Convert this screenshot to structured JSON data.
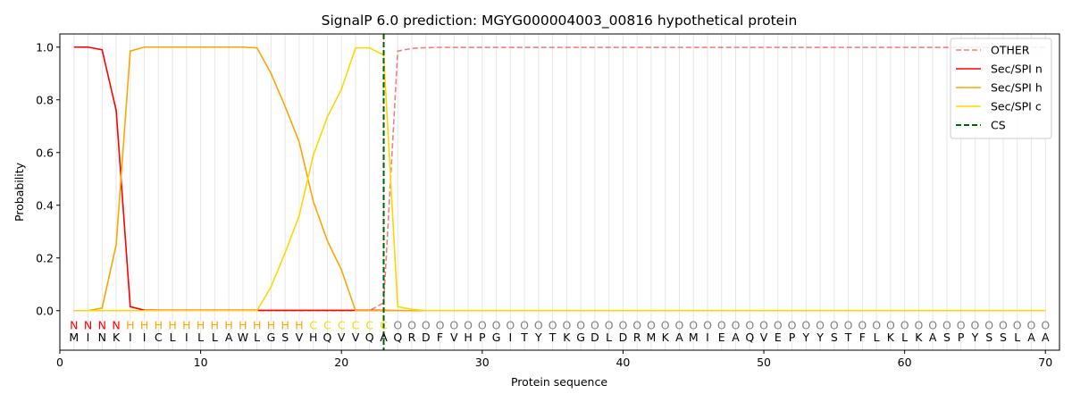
{
  "chart_data": {
    "type": "line",
    "title": "SignalP 6.0 prediction: MGYG000004003_00816 hypothetical protein",
    "xlabel": "Protein sequence",
    "ylabel": "Probability",
    "xlim": [
      0,
      71
    ],
    "ylim": [
      -0.15,
      1.05
    ],
    "xticks": [
      0,
      10,
      20,
      30,
      40,
      50,
      60,
      70
    ],
    "yticks": [
      0.0,
      0.2,
      0.4,
      0.6,
      0.8,
      1.0
    ],
    "ytick_labels": [
      "0.0",
      "0.2",
      "0.4",
      "0.6",
      "0.8",
      "1.0"
    ],
    "grid": "vertical lines at each residue",
    "legend_position": "top-right",
    "sequence": [
      "M",
      "I",
      "N",
      "K",
      "I",
      "I",
      "C",
      "L",
      "I",
      "L",
      "L",
      "A",
      "W",
      "L",
      "G",
      "S",
      "V",
      "H",
      "Q",
      "V",
      "V",
      "Q",
      "A",
      "Q",
      "R",
      "D",
      "F",
      "V",
      "H",
      "P",
      "G",
      "I",
      "T",
      "Y",
      "T",
      "K",
      "G",
      "D",
      "L",
      "D",
      "R",
      "M",
      "K",
      "A",
      "M",
      "I",
      "E",
      "A",
      "Q",
      "V",
      "E",
      "P",
      "Y",
      "Y",
      "S",
      "T",
      "F",
      "L",
      "K",
      "L",
      "K",
      "A",
      "S",
      "P",
      "Y",
      "S",
      "S",
      "L",
      "A",
      "A"
    ],
    "region_labels": [
      "N",
      "N",
      "N",
      "N",
      "H",
      "H",
      "H",
      "H",
      "H",
      "H",
      "H",
      "H",
      "H",
      "H",
      "H",
      "H",
      "H",
      "C",
      "C",
      "C",
      "C",
      "C",
      "C",
      "O",
      "O",
      "O",
      "O",
      "O",
      "O",
      "O",
      "O",
      "O",
      "O",
      "O",
      "O",
      "O",
      "O",
      "O",
      "O",
      "O",
      "O",
      "O",
      "O",
      "O",
      "O",
      "O",
      "O",
      "O",
      "O",
      "O",
      "O",
      "O",
      "O",
      "O",
      "O",
      "O",
      "O",
      "O",
      "O",
      "O",
      "O",
      "O",
      "O",
      "O",
      "O",
      "O",
      "O",
      "O",
      "O",
      "O"
    ],
    "region_colors": {
      "N": "#ff0000",
      "H": "#ffa500",
      "C": "#ffd700",
      "O": "#808080"
    },
    "cleavage_site": 23,
    "series": [
      {
        "name": "OTHER",
        "color": "#f08080",
        "dash": "dashed",
        "values": [
          0,
          0,
          0,
          0,
          0,
          0,
          0,
          0,
          0,
          0,
          0,
          0,
          0,
          0,
          0,
          0,
          0,
          0,
          0,
          0,
          0,
          0,
          0.03,
          0.985,
          0.995,
          0.998,
          0.999,
          0.999,
          0.999,
          0.999,
          0.999,
          0.999,
          0.999,
          0.999,
          0.999,
          0.999,
          0.999,
          0.999,
          0.999,
          0.999,
          0.999,
          0.999,
          0.999,
          0.999,
          0.999,
          0.999,
          0.999,
          0.999,
          0.999,
          0.999,
          0.999,
          0.999,
          0.999,
          0.999,
          0.999,
          0.999,
          0.999,
          0.999,
          0.999,
          0.999,
          0.999,
          0.999,
          0.999,
          0.999,
          0.999,
          0.999,
          0.999,
          0.999,
          0.999,
          0.999
        ]
      },
      {
        "name": "Sec/SPI n",
        "color": "#ff0000",
        "dash": "solid",
        "values": [
          1.0,
          1.0,
          0.99,
          0.76,
          0.015,
          0.002,
          0.001,
          0.001,
          0.001,
          0.001,
          0.001,
          0.001,
          0.001,
          0.001,
          0.001,
          0.001,
          0.001,
          0.001,
          0.001,
          0.001,
          0.001,
          0.001,
          0.001,
          0,
          0,
          0,
          0,
          0,
          0,
          0,
          0,
          0,
          0,
          0,
          0,
          0,
          0,
          0,
          0,
          0,
          0,
          0,
          0,
          0,
          0,
          0,
          0,
          0,
          0,
          0,
          0,
          0,
          0,
          0,
          0,
          0,
          0,
          0,
          0,
          0,
          0,
          0,
          0,
          0,
          0,
          0,
          0,
          0,
          0,
          0
        ]
      },
      {
        "name": "Sec/SPI h",
        "color": "#ffa500",
        "dash": "solid",
        "values": [
          0,
          0,
          0.01,
          0.25,
          0.985,
          1.0,
          1.0,
          1.0,
          1.0,
          1.0,
          1.0,
          1.0,
          1.0,
          0.997,
          0.9,
          0.775,
          0.64,
          0.415,
          0.265,
          0.155,
          0,
          0,
          0,
          0,
          0,
          0,
          0,
          0,
          0,
          0,
          0,
          0,
          0,
          0,
          0,
          0,
          0,
          0,
          0,
          0,
          0,
          0,
          0,
          0,
          0,
          0,
          0,
          0,
          0,
          0,
          0,
          0,
          0,
          0,
          0,
          0,
          0,
          0,
          0,
          0,
          0,
          0,
          0,
          0,
          0,
          0,
          0,
          0,
          0,
          0
        ]
      },
      {
        "name": "Sec/SPI c",
        "color": "#ffd700",
        "dash": "solid",
        "values": [
          0,
          0,
          0,
          0,
          0,
          0,
          0,
          0,
          0,
          0,
          0,
          0,
          0,
          0,
          0.09,
          0.22,
          0.36,
          0.59,
          0.735,
          0.84,
          0.997,
          0.997,
          0.97,
          0.015,
          0.005,
          0,
          0,
          0,
          0,
          0,
          0,
          0,
          0,
          0,
          0,
          0,
          0,
          0,
          0,
          0,
          0,
          0,
          0,
          0,
          0,
          0,
          0,
          0,
          0,
          0,
          0,
          0,
          0,
          0,
          0,
          0,
          0,
          0,
          0,
          0,
          0,
          0,
          0,
          0,
          0,
          0,
          0,
          0,
          0,
          0
        ]
      },
      {
        "name": "CS",
        "color": "#006400",
        "dash": "dashed",
        "vertical_at": 23
      }
    ]
  }
}
